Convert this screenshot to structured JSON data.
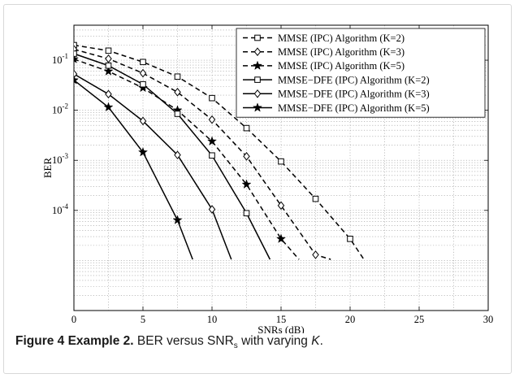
{
  "chart_data": {
    "type": "line",
    "xlabel": "SNRs (dB)",
    "ylabel": "BER",
    "xlim": [
      0,
      30
    ],
    "ylim": [
      1e-06,
      0.5
    ],
    "yscale": "log",
    "xticks": [
      0,
      5,
      10,
      15,
      20,
      25,
      30
    ],
    "yticks": [
      0.0001,
      0.001,
      0.01,
      0.1
    ],
    "grid": true,
    "legend_position": "top-right",
    "series": [
      {
        "name": "MMSE (IPC) Algorithm (K=2)",
        "style": "dashed",
        "marker": "square",
        "x": [
          0,
          2.5,
          5,
          7.5,
          10,
          12.5,
          15,
          17.5,
          20,
          21
        ],
        "y": [
          0.2,
          0.155,
          0.092,
          0.047,
          0.0175,
          0.0044,
          0.00095,
          0.00017,
          2.7e-05,
          1.05e-05
        ]
      },
      {
        "name": "MMSE (IPC) Algorithm (K=3)",
        "style": "dashed",
        "marker": "diamond",
        "x": [
          0,
          2.5,
          5,
          7.5,
          10,
          12.5,
          15,
          17.5,
          18.6
        ],
        "y": [
          0.165,
          0.107,
          0.055,
          0.023,
          0.0065,
          0.0012,
          0.000125,
          1.3e-05,
          1.05e-05
        ]
      },
      {
        "name": "MMSE (IPC) Algorithm (K=5)",
        "style": "dashed",
        "marker": "star",
        "x": [
          0,
          2.5,
          5,
          7.5,
          10,
          12.5,
          15,
          16.3
        ],
        "y": [
          0.105,
          0.06,
          0.028,
          0.01,
          0.0024,
          0.00033,
          2.7e-05,
          1.05e-05
        ]
      },
      {
        "name": "MMSE−DFE (IPC) Algorithm (K=2)",
        "style": "solid",
        "marker": "square",
        "x": [
          0,
          2.5,
          5,
          7.5,
          10,
          12.5,
          14.2
        ],
        "y": [
          0.135,
          0.078,
          0.033,
          0.0085,
          0.00125,
          8.8e-05,
          1.05e-05
        ]
      },
      {
        "name": "MMSE−DFE (IPC) Algorithm (K=3)",
        "style": "solid",
        "marker": "diamond",
        "x": [
          0,
          2.5,
          5,
          7.5,
          10,
          11.4
        ],
        "y": [
          0.053,
          0.021,
          0.0061,
          0.00128,
          0.000105,
          1.05e-05
        ]
      },
      {
        "name": "MMSE−DFE (IPC) Algorithm (K=5)",
        "style": "solid",
        "marker": "star",
        "x": [
          0,
          2.5,
          5,
          7.5,
          8.6
        ],
        "y": [
          0.04,
          0.0115,
          0.00145,
          6.4e-05,
          1.05e-05
        ]
      }
    ]
  },
  "caption": {
    "label": "Figure 4 Example 2.",
    "text_a": " BER versus SNR",
    "sub": "s",
    "text_b": " with varying ",
    "var": "K",
    "text_c": "."
  }
}
